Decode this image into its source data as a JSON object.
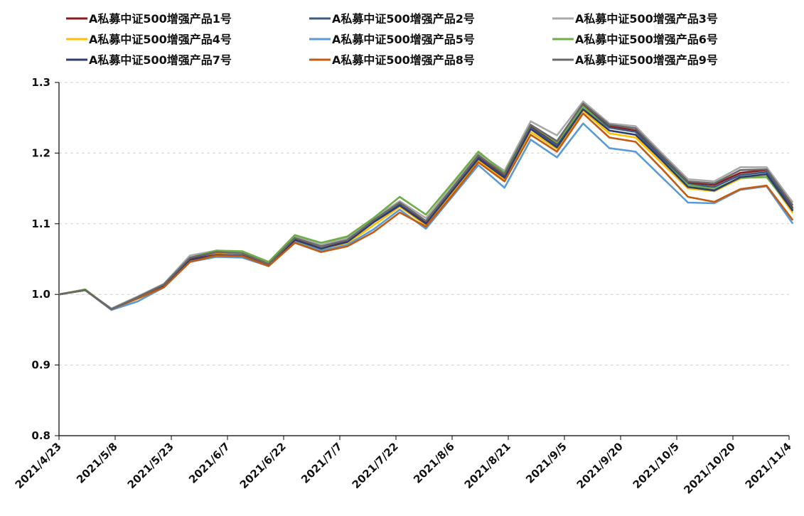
{
  "chart_data": {
    "type": "line",
    "title": "",
    "xlabel": "",
    "ylabel": "",
    "ylim": [
      0.8,
      1.3
    ],
    "yticks": [
      "0.8",
      "0.9",
      "1.0",
      "1.1",
      "1.2",
      "1.3"
    ],
    "grid": "horizontal-dashed",
    "legend_position": "top",
    "x_ticks": [
      "2021/4/23",
      "2021/5/8",
      "2021/5/23",
      "2021/6/7",
      "2021/6/22",
      "2021/7/7",
      "2021/7/22",
      "2021/8/6",
      "2021/8/21",
      "2021/9/5",
      "2021/9/20",
      "2021/10/5",
      "2021/10/20",
      "2021/11/4"
    ],
    "x": [
      "2021/4/23",
      "2021/4/30",
      "2021/5/7",
      "2021/5/14",
      "2021/5/21",
      "2021/5/28",
      "2021/6/4",
      "2021/6/11",
      "2021/6/18",
      "2021/6/25",
      "2021/7/2",
      "2021/7/9",
      "2021/7/16",
      "2021/7/23",
      "2021/7/30",
      "2021/8/6",
      "2021/8/13",
      "2021/8/20",
      "2021/8/27",
      "2021/9/3",
      "2021/9/10",
      "2021/9/17",
      "2021/9/24",
      "2021/10/1",
      "2021/10/8",
      "2021/10/15",
      "2021/10/22",
      "2021/10/29",
      "2021/11/5"
    ],
    "series": [
      {
        "name": "A私募中证500增强产品1号",
        "color": "#8b1a1a",
        "values": [
          1.0,
          1.006,
          0.979,
          0.995,
          1.012,
          1.05,
          1.058,
          1.057,
          1.042,
          1.078,
          1.065,
          1.075,
          1.105,
          1.128,
          1.102,
          1.148,
          1.195,
          1.168,
          1.238,
          1.212,
          1.268,
          1.238,
          1.232,
          1.195,
          1.158,
          1.155,
          1.172,
          1.176,
          1.122
        ]
      },
      {
        "name": "A私募中证500增强产品2号",
        "color": "#3d5a80",
        "values": [
          1.0,
          1.006,
          0.979,
          0.995,
          1.012,
          1.049,
          1.057,
          1.055,
          1.041,
          1.077,
          1.064,
          1.074,
          1.103,
          1.127,
          1.1,
          1.146,
          1.193,
          1.166,
          1.236,
          1.211,
          1.266,
          1.236,
          1.23,
          1.193,
          1.156,
          1.152,
          1.169,
          1.173,
          1.12
        ]
      },
      {
        "name": "A私募中证500增强产品3号",
        "color": "#a9a9a9",
        "values": [
          1.0,
          1.006,
          0.98,
          0.997,
          1.015,
          1.055,
          1.062,
          1.06,
          1.045,
          1.082,
          1.07,
          1.08,
          1.108,
          1.132,
          1.108,
          1.153,
          1.2,
          1.175,
          1.245,
          1.225,
          1.273,
          1.242,
          1.238,
          1.2,
          1.163,
          1.16,
          1.18,
          1.18,
          1.13
        ]
      },
      {
        "name": "A私募中证500增强产品4号",
        "color": "#ffc000",
        "values": [
          1.0,
          1.006,
          0.979,
          0.994,
          1.011,
          1.048,
          1.057,
          1.056,
          1.042,
          1.076,
          1.065,
          1.072,
          1.098,
          1.124,
          1.098,
          1.143,
          1.19,
          1.163,
          1.23,
          1.206,
          1.26,
          1.228,
          1.222,
          1.186,
          1.15,
          1.146,
          1.164,
          1.168,
          1.115
        ]
      },
      {
        "name": "A私募中证500增强产品5号",
        "color": "#5b9bd5",
        "values": [
          1.0,
          1.006,
          0.978,
          0.99,
          1.01,
          1.046,
          1.053,
          1.052,
          1.04,
          1.074,
          1.062,
          1.07,
          1.092,
          1.12,
          1.093,
          1.138,
          1.183,
          1.151,
          1.219,
          1.194,
          1.242,
          1.207,
          1.202,
          1.166,
          1.13,
          1.129,
          1.148,
          1.153,
          1.1
        ]
      },
      {
        "name": "A私募中证500增强产品6号",
        "color": "#70ad47",
        "values": [
          1.0,
          1.007,
          0.979,
          0.996,
          1.013,
          1.052,
          1.062,
          1.061,
          1.046,
          1.084,
          1.073,
          1.082,
          1.108,
          1.138,
          1.113,
          1.157,
          1.202,
          1.172,
          1.24,
          1.215,
          1.266,
          1.232,
          1.226,
          1.19,
          1.155,
          1.149,
          1.165,
          1.166,
          1.119
        ]
      },
      {
        "name": "A私募中证500增强产品7号",
        "color": "#2f3e6e",
        "values": [
          1.0,
          1.006,
          0.979,
          0.995,
          1.012,
          1.049,
          1.056,
          1.055,
          1.041,
          1.077,
          1.065,
          1.074,
          1.102,
          1.126,
          1.1,
          1.146,
          1.192,
          1.165,
          1.234,
          1.208,
          1.262,
          1.232,
          1.226,
          1.19,
          1.152,
          1.147,
          1.166,
          1.17,
          1.118
        ]
      },
      {
        "name": "A私募中证500增强产品8号",
        "color": "#c55a11",
        "values": [
          1.0,
          1.006,
          0.979,
          0.994,
          1.01,
          1.046,
          1.055,
          1.054,
          1.04,
          1.073,
          1.06,
          1.068,
          1.088,
          1.116,
          1.096,
          1.14,
          1.187,
          1.16,
          1.226,
          1.202,
          1.256,
          1.222,
          1.216,
          1.178,
          1.138,
          1.131,
          1.149,
          1.154,
          1.105
        ]
      },
      {
        "name": "A私募中证500增强产品9号",
        "color": "#696969",
        "values": [
          1.0,
          1.006,
          0.979,
          0.996,
          1.014,
          1.052,
          1.06,
          1.058,
          1.043,
          1.08,
          1.068,
          1.077,
          1.105,
          1.13,
          1.104,
          1.15,
          1.197,
          1.17,
          1.24,
          1.217,
          1.27,
          1.24,
          1.235,
          1.197,
          1.16,
          1.157,
          1.176,
          1.177,
          1.126
        ]
      }
    ]
  }
}
